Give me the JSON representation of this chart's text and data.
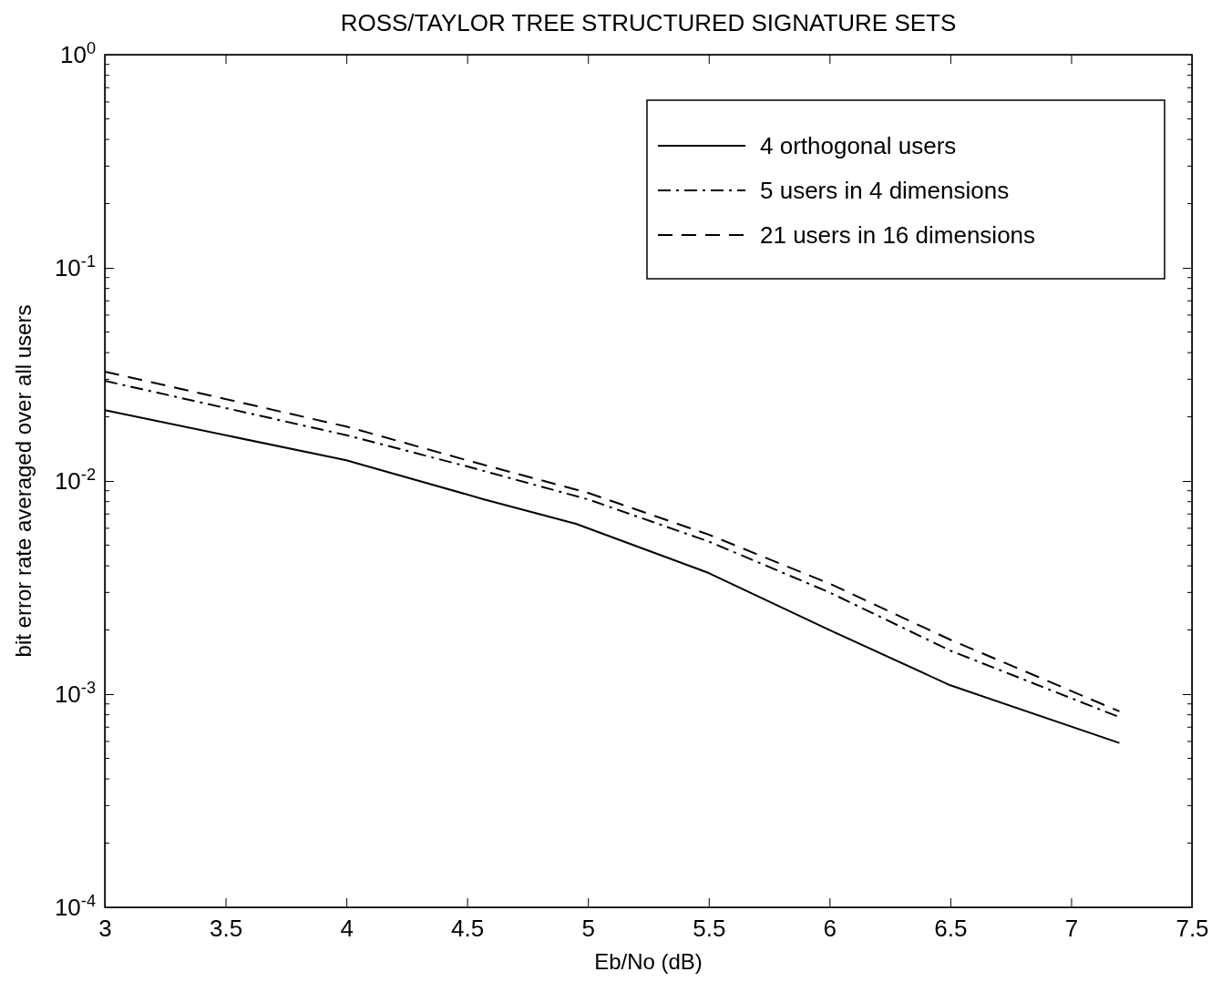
{
  "chart_data": {
    "type": "line",
    "title": "ROSS/TAYLOR TREE STRUCTURED SIGNATURE SETS",
    "xlabel": "Eb/No (dB)",
    "ylabel": "bit error rate averaged over all users",
    "log": "y",
    "legend": "top right",
    "grid": false,
    "marker": "none",
    "xlim": [
      3,
      7.5
    ],
    "xticks": [
      3,
      3.5,
      4,
      4.5,
      5,
      5.5,
      6,
      6.5,
      7,
      7.5
    ],
    "ylim": [
      0.0001,
      1
    ],
    "yticks": [
      {
        "value": 0.0001,
        "label": "10$^{-4}$"
      },
      {
        "value": 0.001,
        "label": "10$^{-3}$"
      },
      {
        "value": 0.01,
        "label": "10$^{-2}$"
      },
      {
        "value": 0.1,
        "label": "10$^{-1}$"
      },
      {
        "value": 1,
        "label": "10$^{0}$"
      }
    ],
    "x": [
      3,
      4,
      4.5,
      5,
      5.5,
      6,
      6.5,
      7.2
    ],
    "series": [
      {
        "name": "4 orthogonal users",
        "color": "#000000",
        "line_style": "solid",
        "x": [
          3,
          4,
          4.57,
          4.95,
          5.5,
          6,
          6.5,
          7.2
        ],
        "values": [
          0.0215,
          0.0125,
          0.0082,
          0.0063,
          0.0037,
          0.002,
          0.0011,
          0.00059
        ]
      },
      {
        "name": "5 users in 4 dimensions",
        "color": "#000000",
        "line_style": "dashdot",
        "values": [
          0.0295,
          0.0164,
          0.0117,
          0.0082,
          0.0052,
          0.003,
          0.0016,
          0.00078
        ]
      },
      {
        "name": "21 users in 16 dimensions",
        "color": "#000000",
        "line_style": "dashed",
        "values": [
          0.0326,
          0.018,
          0.0125,
          0.0088,
          0.0056,
          0.0033,
          0.0018,
          0.00083
        ]
      }
    ]
  }
}
